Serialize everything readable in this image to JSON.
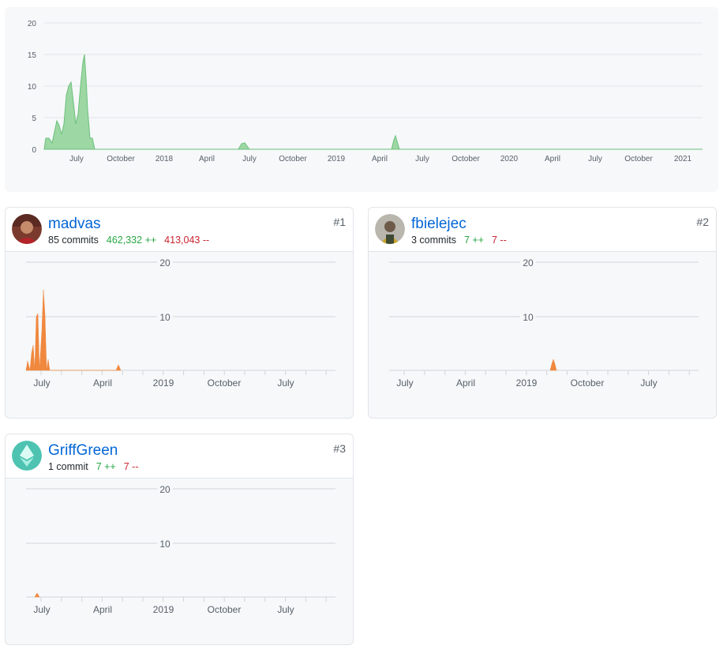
{
  "overview": {
    "y_ticks": [
      "0",
      "5",
      "10",
      "15",
      "20"
    ],
    "x_ticks": [
      "July",
      "October",
      "2018",
      "April",
      "July",
      "October",
      "2019",
      "April",
      "July",
      "October",
      "2020",
      "April",
      "July",
      "October",
      "2021"
    ],
    "colors": {
      "area": "#9dd7a4",
      "stroke": "#6cc07a",
      "grid": "#e1e4e8"
    }
  },
  "contributors": [
    {
      "rank": "#1",
      "login": "madvas",
      "commits": "85 commits",
      "additions": "462,332 ++",
      "deletions": "413,043 --",
      "avatar": "avatar-photo",
      "y_ticks": [
        "20",
        "10"
      ],
      "x_ticks": [
        "July",
        "April",
        "2019",
        "October",
        "July"
      ]
    },
    {
      "rank": "#2",
      "login": "fbielejec",
      "commits": "3 commits",
      "additions": "7 ++",
      "deletions": "7 --",
      "avatar": "avatar-photo",
      "y_ticks": [
        "20",
        "10"
      ],
      "x_ticks": [
        "July",
        "April",
        "2019",
        "October",
        "July"
      ]
    },
    {
      "rank": "#3",
      "login": "GriffGreen",
      "commits": "1 commit",
      "additions": "7 ++",
      "deletions": "7 --",
      "avatar": "ethereum-icon",
      "y_ticks": [
        "20",
        "10"
      ],
      "x_ticks": [
        "July",
        "April",
        "2019",
        "October",
        "July"
      ]
    }
  ],
  "colors": {
    "contributor_area": "#f0883e",
    "link": "#0366d6",
    "add": "#28a745",
    "del": "#cb2431"
  }
}
